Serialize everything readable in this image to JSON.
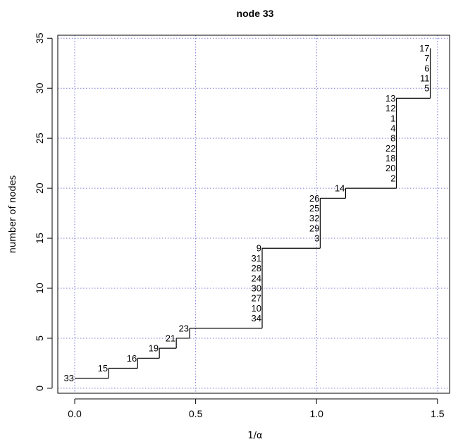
{
  "chart_data": {
    "type": "line",
    "step": true,
    "title": "node 33",
    "xlabel": "1/α",
    "ylabel": "number of nodes",
    "xlim": [
      -0.07,
      1.55
    ],
    "ylim": [
      -0.5,
      35.3
    ],
    "xticks": [
      0.0,
      0.5,
      1.0,
      1.5
    ],
    "xtick_labels": [
      "0.0",
      "0.5",
      "1.0",
      "1.5"
    ],
    "yticks": [
      0,
      5,
      10,
      15,
      20,
      25,
      30,
      35
    ],
    "ytick_labels": [
      "0",
      "5",
      "10",
      "15",
      "20",
      "25",
      "30",
      "35"
    ],
    "grid": true,
    "points": [
      {
        "x": 0.0,
        "y": 1
      },
      {
        "x": 0.14,
        "y": 1
      },
      {
        "x": 0.14,
        "y": 2
      },
      {
        "x": 0.26,
        "y": 2
      },
      {
        "x": 0.26,
        "y": 3
      },
      {
        "x": 0.35,
        "y": 3
      },
      {
        "x": 0.35,
        "y": 4
      },
      {
        "x": 0.42,
        "y": 4
      },
      {
        "x": 0.42,
        "y": 5
      },
      {
        "x": 0.475,
        "y": 5
      },
      {
        "x": 0.475,
        "y": 6
      },
      {
        "x": 0.775,
        "y": 6
      },
      {
        "x": 0.775,
        "y": 14
      },
      {
        "x": 1.015,
        "y": 14
      },
      {
        "x": 1.015,
        "y": 19
      },
      {
        "x": 1.12,
        "y": 19
      },
      {
        "x": 1.12,
        "y": 20
      },
      {
        "x": 1.33,
        "y": 20
      },
      {
        "x": 1.33,
        "y": 29
      },
      {
        "x": 1.47,
        "y": 29
      },
      {
        "x": 1.47,
        "y": 34
      }
    ],
    "node_labels": [
      {
        "text": "33",
        "x": 0.0,
        "y": 1
      },
      {
        "text": "15",
        "x": 0.14,
        "y": 2
      },
      {
        "text": "16",
        "x": 0.26,
        "y": 3
      },
      {
        "text": "19",
        "x": 0.35,
        "y": 4
      },
      {
        "text": "21",
        "x": 0.42,
        "y": 5
      },
      {
        "text": "23",
        "x": 0.475,
        "y": 6
      },
      {
        "text": "34",
        "x": 0.775,
        "y": 7
      },
      {
        "text": "10",
        "x": 0.775,
        "y": 8
      },
      {
        "text": "27",
        "x": 0.775,
        "y": 9
      },
      {
        "text": "30",
        "x": 0.775,
        "y": 10
      },
      {
        "text": "24",
        "x": 0.775,
        "y": 11
      },
      {
        "text": "28",
        "x": 0.775,
        "y": 12
      },
      {
        "text": "31",
        "x": 0.775,
        "y": 13
      },
      {
        "text": "9",
        "x": 0.775,
        "y": 14
      },
      {
        "text": "3",
        "x": 1.015,
        "y": 15
      },
      {
        "text": "29",
        "x": 1.015,
        "y": 16
      },
      {
        "text": "32",
        "x": 1.015,
        "y": 17
      },
      {
        "text": "25",
        "x": 1.015,
        "y": 18
      },
      {
        "text": "26",
        "x": 1.015,
        "y": 19
      },
      {
        "text": "14",
        "x": 1.12,
        "y": 20
      },
      {
        "text": "2",
        "x": 1.33,
        "y": 21
      },
      {
        "text": "20",
        "x": 1.33,
        "y": 22
      },
      {
        "text": "18",
        "x": 1.33,
        "y": 23
      },
      {
        "text": "22",
        "x": 1.33,
        "y": 24
      },
      {
        "text": "8",
        "x": 1.33,
        "y": 25
      },
      {
        "text": "4",
        "x": 1.33,
        "y": 26
      },
      {
        "text": "1",
        "x": 1.33,
        "y": 27
      },
      {
        "text": "12",
        "x": 1.33,
        "y": 28
      },
      {
        "text": "13",
        "x": 1.33,
        "y": 29
      },
      {
        "text": "5",
        "x": 1.47,
        "y": 30
      },
      {
        "text": "11",
        "x": 1.47,
        "y": 31
      },
      {
        "text": "6",
        "x": 1.47,
        "y": 32
      },
      {
        "text": "7",
        "x": 1.47,
        "y": 33
      },
      {
        "text": "17",
        "x": 1.47,
        "y": 34
      }
    ],
    "colors": {
      "line": "#000000",
      "grid": "#7b7bd6",
      "background": "#ffffff"
    }
  }
}
